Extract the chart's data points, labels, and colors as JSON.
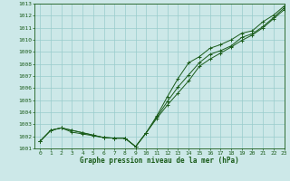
{
  "xlabel": "Graphe pression niveau de la mer (hPa)",
  "bg_color": "#cce8e8",
  "grid_color": "#99cccc",
  "line_color": "#1a5c1a",
  "xlim": [
    -0.5,
    23
  ],
  "ylim": [
    1001,
    1013
  ],
  "xticks": [
    0,
    1,
    2,
    3,
    4,
    5,
    6,
    7,
    8,
    9,
    10,
    11,
    12,
    13,
    14,
    15,
    16,
    17,
    18,
    19,
    20,
    21,
    22,
    23
  ],
  "yticks": [
    1001,
    1002,
    1003,
    1004,
    1005,
    1006,
    1007,
    1008,
    1009,
    1010,
    1011,
    1012,
    1013
  ],
  "series1_x": [
    0,
    1,
    2,
    3,
    4,
    5,
    6,
    7,
    8,
    9,
    10,
    11,
    12,
    13,
    14,
    15,
    16,
    17,
    18,
    19,
    20,
    21,
    22,
    23
  ],
  "series1_y": [
    1001.6,
    1002.5,
    1002.7,
    1002.5,
    1002.3,
    1002.1,
    1001.9,
    1001.85,
    1001.85,
    1001.15,
    1002.3,
    1003.6,
    1004.9,
    1006.1,
    1007.1,
    1008.1,
    1008.8,
    1009.1,
    1009.5,
    1010.2,
    1010.5,
    1011.1,
    1011.85,
    1012.65
  ],
  "series2_x": [
    0,
    1,
    2,
    3,
    4,
    5,
    6,
    7,
    8,
    9,
    10,
    11,
    12,
    13,
    14,
    15,
    16,
    17,
    18,
    19,
    20,
    21,
    22,
    23
  ],
  "series2_y": [
    1001.6,
    1002.5,
    1002.7,
    1002.5,
    1002.3,
    1002.1,
    1001.9,
    1001.85,
    1001.85,
    1001.15,
    1002.3,
    1003.7,
    1005.3,
    1006.8,
    1008.1,
    1008.6,
    1009.3,
    1009.6,
    1010.0,
    1010.55,
    1010.75,
    1011.5,
    1012.05,
    1012.8
  ],
  "series3_x": [
    0,
    1,
    2,
    3,
    4,
    5,
    6,
    7,
    8,
    9,
    10,
    11,
    12,
    13,
    14,
    15,
    16,
    17,
    18,
    19,
    20,
    21,
    22,
    23
  ],
  "series3_y": [
    1001.6,
    1002.5,
    1002.7,
    1002.35,
    1002.2,
    1002.05,
    1001.9,
    1001.85,
    1001.85,
    1001.15,
    1002.3,
    1003.5,
    1004.6,
    1005.6,
    1006.6,
    1007.8,
    1008.4,
    1008.9,
    1009.4,
    1009.95,
    1010.4,
    1011.0,
    1011.75,
    1012.5
  ]
}
